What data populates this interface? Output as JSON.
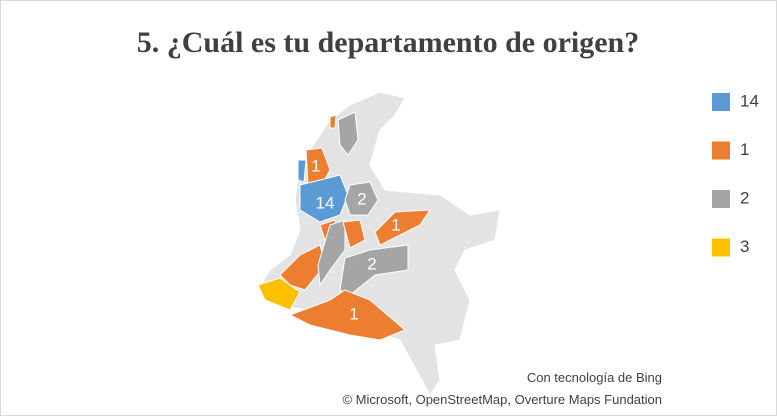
{
  "title": "5. ¿Cuál es tu departamento de origen?",
  "legend": [
    {
      "value": 14,
      "color": "#5b9bd5"
    },
    {
      "value": 1,
      "color": "#ed7d31"
    },
    {
      "value": 2,
      "color": "#a5a5a5"
    },
    {
      "value": 3,
      "color": "#ffc000"
    }
  ],
  "regions": [
    14,
    1,
    14,
    2,
    1,
    2,
    1,
    3,
    1,
    1,
    2,
    1,
    2,
    1
  ],
  "attribution": [
    "Con tecnología de Bing",
    "© Microsoft, OpenStreetMap, Overture Maps Fundation"
  ]
}
